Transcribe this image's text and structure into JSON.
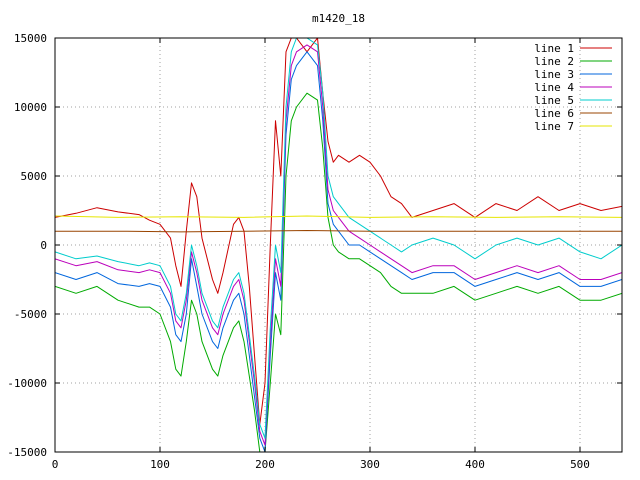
{
  "chart_data": {
    "type": "line",
    "title": "m1420_18",
    "xlabel": "",
    "ylabel": "",
    "xlim": [
      0,
      540
    ],
    "ylim": [
      -15000,
      15000
    ],
    "xticks": [
      0,
      100,
      200,
      300,
      400,
      500
    ],
    "yticks": [
      -15000,
      -10000,
      -5000,
      0,
      5000,
      10000,
      15000
    ],
    "grid": true,
    "legend_position": "top-right",
    "series": [
      {
        "name": "line 1",
        "color": "#cc0000",
        "x": [
          0,
          20,
          40,
          60,
          80,
          90,
          100,
          110,
          115,
          120,
          125,
          130,
          135,
          140,
          150,
          155,
          160,
          170,
          175,
          180,
          185,
          190,
          195,
          200,
          205,
          210,
          215,
          220,
          225,
          230,
          240,
          250,
          255,
          260,
          265,
          270,
          280,
          290,
          300,
          310,
          320,
          330,
          340,
          360,
          380,
          400,
          420,
          440,
          460,
          480,
          500,
          520,
          540
        ],
        "values": [
          2000,
          2300,
          2700,
          2400,
          2200,
          1800,
          1500,
          500,
          -1500,
          -3000,
          1000,
          4500,
          3500,
          500,
          -2500,
          -3500,
          -2000,
          1500,
          2000,
          1000,
          -3000,
          -8000,
          -13000,
          -10000,
          0,
          9000,
          5000,
          14000,
          15000,
          15000,
          14000,
          15000,
          11000,
          7500,
          6000,
          6500,
          6000,
          6500,
          6000,
          5000,
          3500,
          3000,
          2000,
          2500,
          3000,
          2000,
          3000,
          2500,
          3500,
          2500,
          3000,
          2500,
          2800
        ]
      },
      {
        "name": "line 2",
        "color": "#00aa00",
        "x": [
          0,
          20,
          40,
          60,
          80,
          90,
          100,
          110,
          115,
          120,
          125,
          130,
          135,
          140,
          150,
          155,
          160,
          170,
          175,
          180,
          185,
          190,
          195,
          200,
          205,
          210,
          215,
          220,
          225,
          230,
          240,
          250,
          255,
          260,
          265,
          270,
          280,
          290,
          300,
          310,
          320,
          330,
          340,
          360,
          380,
          400,
          420,
          440,
          460,
          480,
          500,
          520,
          540
        ],
        "values": [
          -3000,
          -3500,
          -3000,
          -4000,
          -4500,
          -4500,
          -5000,
          -7000,
          -9000,
          -9500,
          -7000,
          -4000,
          -5000,
          -7000,
          -9000,
          -9500,
          -8000,
          -6000,
          -5500,
          -7000,
          -9500,
          -12000,
          -15000,
          -15000,
          -10000,
          -5000,
          -6500,
          5000,
          9000,
          10000,
          11000,
          10500,
          7000,
          2000,
          0,
          -500,
          -1000,
          -1000,
          -1500,
          -2000,
          -3000,
          -3500,
          -3500,
          -3500,
          -3000,
          -4000,
          -3500,
          -3000,
          -3500,
          -3000,
          -4000,
          -4000,
          -3500
        ]
      },
      {
        "name": "line 3",
        "color": "#0066dd",
        "x": [
          0,
          20,
          40,
          60,
          80,
          90,
          100,
          110,
          115,
          120,
          125,
          130,
          135,
          140,
          150,
          155,
          160,
          170,
          175,
          180,
          185,
          190,
          195,
          200,
          205,
          210,
          215,
          220,
          225,
          230,
          240,
          250,
          255,
          260,
          265,
          270,
          280,
          290,
          300,
          310,
          320,
          330,
          340,
          360,
          380,
          400,
          420,
          440,
          460,
          480,
          500,
          520,
          540
        ],
        "values": [
          -2000,
          -2500,
          -2000,
          -2800,
          -3000,
          -2800,
          -3000,
          -4500,
          -6500,
          -7000,
          -5000,
          -1000,
          -3000,
          -5000,
          -7000,
          -7500,
          -6000,
          -4000,
          -3500,
          -5000,
          -8000,
          -11000,
          -14000,
          -15000,
          -8000,
          -2000,
          -4000,
          8000,
          12000,
          13000,
          14000,
          13000,
          9000,
          3000,
          1500,
          1000,
          0,
          0,
          -500,
          -1000,
          -1500,
          -2000,
          -2500,
          -2000,
          -2000,
          -3000,
          -2500,
          -2000,
          -2500,
          -2000,
          -3000,
          -3000,
          -2500
        ]
      },
      {
        "name": "line 4",
        "color": "#bb00bb",
        "x": [
          0,
          20,
          40,
          60,
          80,
          90,
          100,
          110,
          115,
          120,
          125,
          130,
          135,
          140,
          150,
          155,
          160,
          170,
          175,
          180,
          185,
          190,
          195,
          200,
          205,
          210,
          215,
          220,
          225,
          230,
          240,
          250,
          255,
          260,
          265,
          270,
          280,
          290,
          300,
          310,
          320,
          330,
          340,
          360,
          380,
          400,
          420,
          440,
          460,
          480,
          500,
          520,
          540
        ],
        "values": [
          -1000,
          -1500,
          -1200,
          -1800,
          -2000,
          -1800,
          -2000,
          -3500,
          -5500,
          -6000,
          -4000,
          -500,
          -2000,
          -4000,
          -6000,
          -6500,
          -5000,
          -3000,
          -2500,
          -4000,
          -7000,
          -10000,
          -13500,
          -14500,
          -7000,
          -1000,
          -3000,
          9000,
          13000,
          14000,
          14500,
          14000,
          10000,
          4000,
          2500,
          2000,
          1000,
          500,
          0,
          -500,
          -1000,
          -1500,
          -2000,
          -1500,
          -1500,
          -2500,
          -2000,
          -1500,
          -2000,
          -1500,
          -2500,
          -2500,
          -2000
        ]
      },
      {
        "name": "line 5",
        "color": "#00cccc",
        "x": [
          0,
          20,
          40,
          60,
          80,
          90,
          100,
          110,
          115,
          120,
          125,
          130,
          135,
          140,
          150,
          155,
          160,
          170,
          175,
          180,
          185,
          190,
          195,
          200,
          205,
          210,
          215,
          220,
          225,
          230,
          240,
          250,
          255,
          260,
          265,
          270,
          280,
          290,
          300,
          310,
          320,
          330,
          340,
          360,
          380,
          400,
          420,
          440,
          460,
          480,
          500,
          520,
          540
        ],
        "values": [
          -500,
          -1000,
          -800,
          -1200,
          -1500,
          -1300,
          -1500,
          -3000,
          -5000,
          -5500,
          -3500,
          0,
          -1500,
          -3500,
          -5500,
          -6000,
          -4500,
          -2500,
          -2000,
          -3500,
          -6500,
          -9500,
          -13000,
          -14000,
          -6000,
          0,
          -2000,
          10000,
          14000,
          15000,
          15000,
          14500,
          11000,
          5000,
          3500,
          3000,
          2000,
          1500,
          1000,
          500,
          0,
          -500,
          0,
          500,
          0,
          -1000,
          0,
          500,
          0,
          500,
          -500,
          -1000,
          0
        ]
      },
      {
        "name": "line 6",
        "color": "#994400",
        "x": [
          0,
          60,
          120,
          180,
          240,
          300,
          360,
          420,
          480,
          540
        ],
        "values": [
          1000,
          1000,
          950,
          1000,
          1050,
          1000,
          1000,
          1000,
          1000,
          1000
        ]
      },
      {
        "name": "line 7",
        "color": "#e6e600",
        "x": [
          0,
          60,
          120,
          180,
          240,
          300,
          360,
          420,
          480,
          540
        ],
        "values": [
          2100,
          2000,
          2050,
          2000,
          2100,
          2000,
          2050,
          2000,
          2050,
          2000
        ]
      }
    ]
  }
}
